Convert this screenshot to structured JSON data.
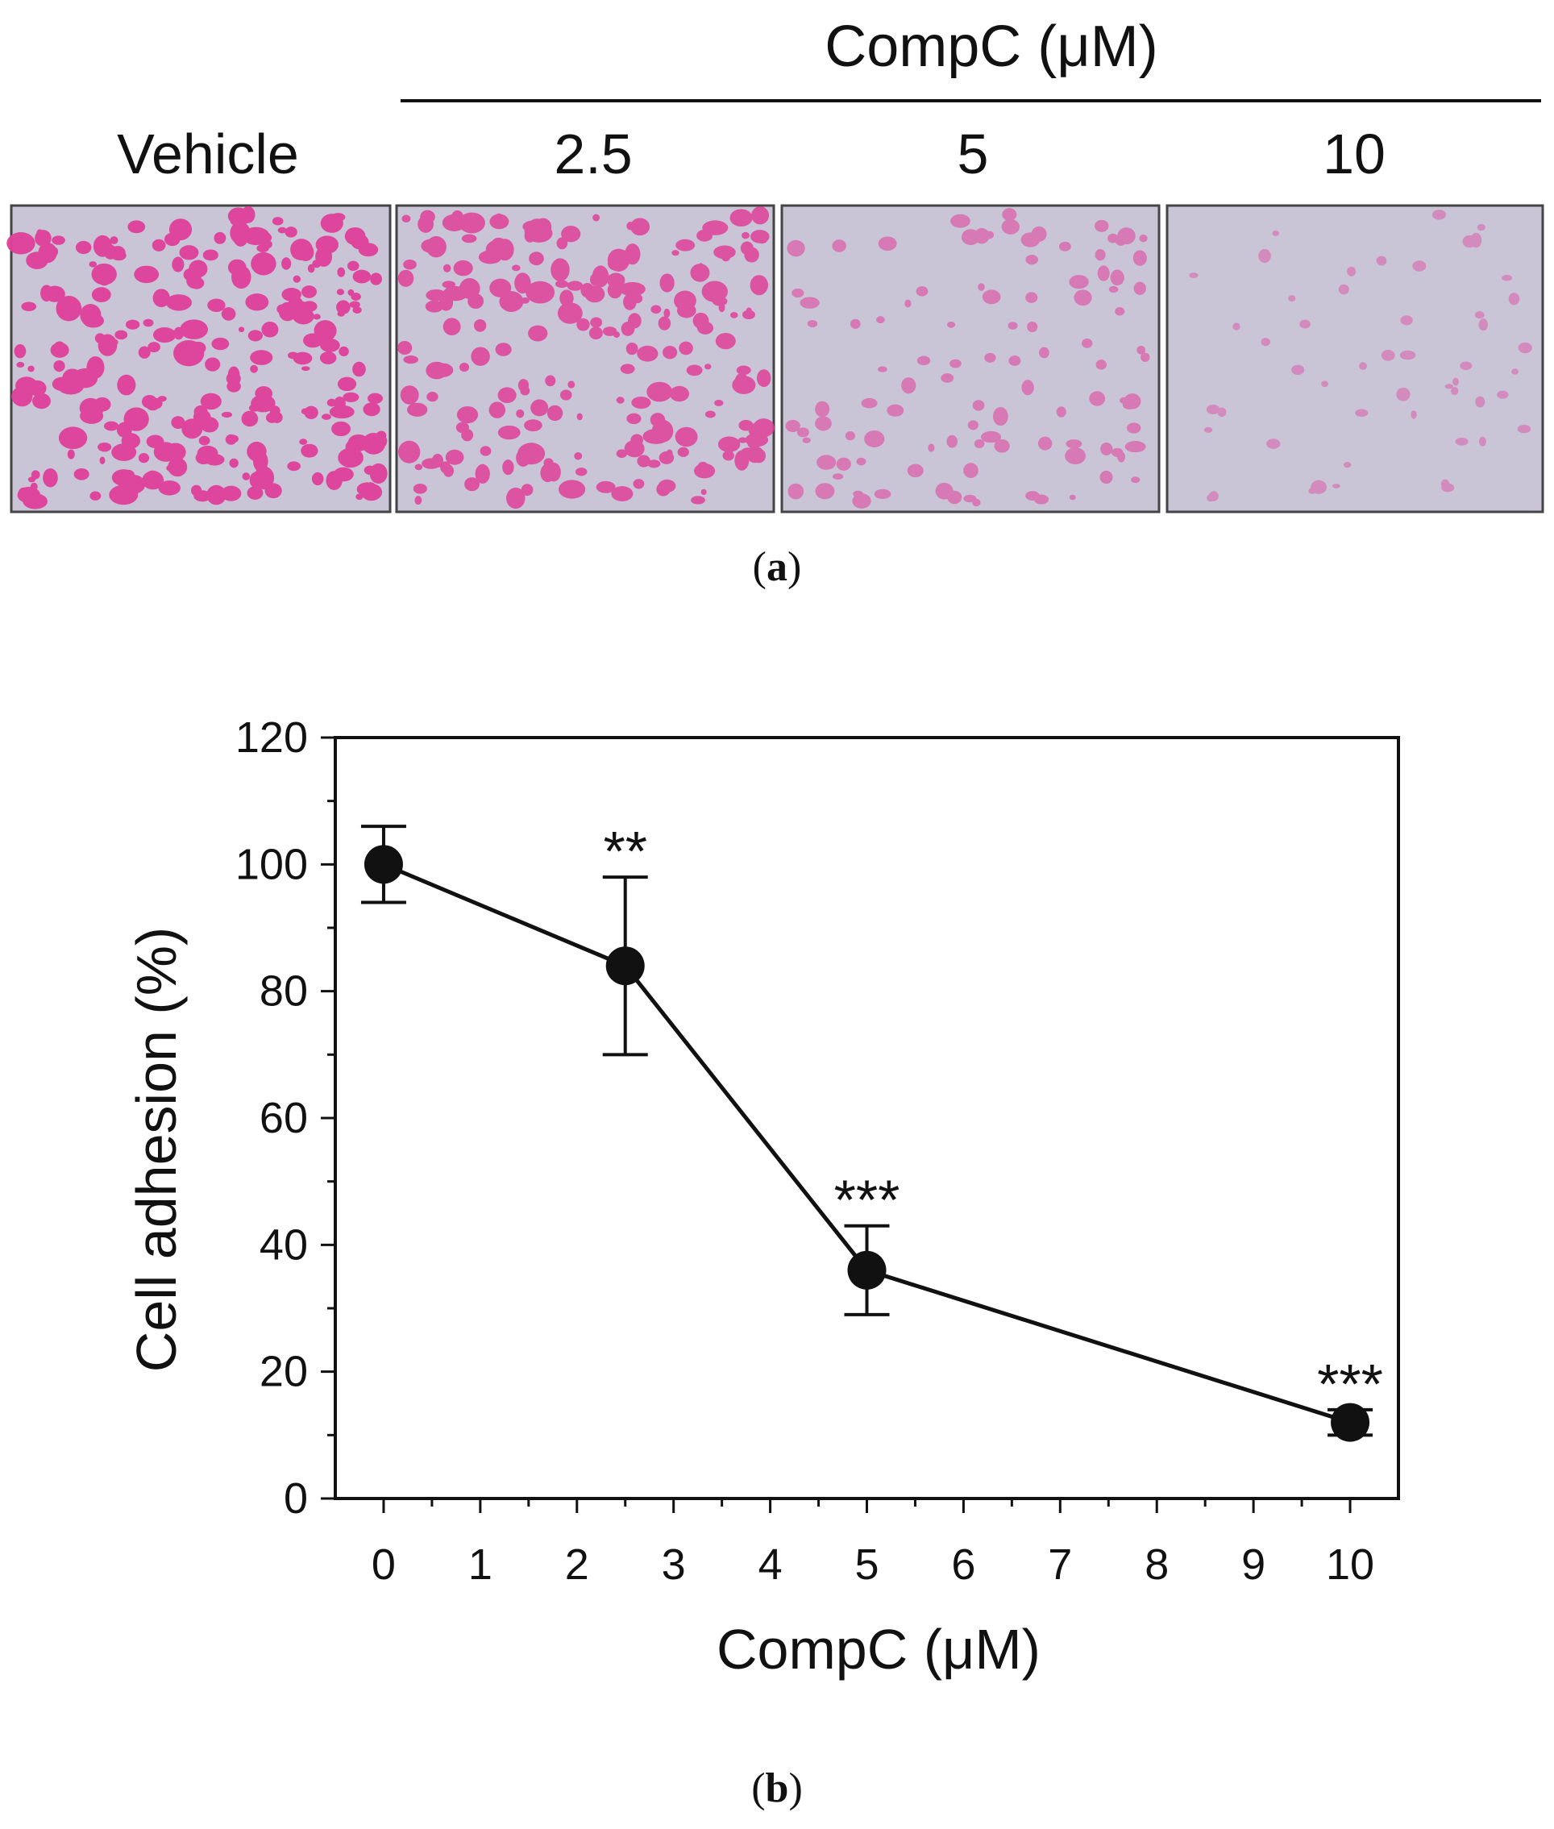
{
  "panel_a": {
    "label": "a",
    "group_label": "CompC  (μM)",
    "columns": [
      {
        "label": "Vehicle",
        "cell_density": 1.0
      },
      {
        "label": "2.5",
        "cell_density": 0.84
      },
      {
        "label": "5",
        "cell_density": 0.36
      },
      {
        "label": "10",
        "cell_density": 0.12
      }
    ],
    "colors": {
      "stain": "#e0409a",
      "background": "#c9c4d6"
    }
  },
  "panel_b": {
    "label": "b"
  },
  "chart_data": {
    "type": "line",
    "xlabel": "CompC (μM)",
    "ylabel": "Cell adhesion (%)",
    "xlim": [
      -0.5,
      10.5
    ],
    "ylim": [
      0,
      120
    ],
    "xticks": [
      0,
      1,
      2,
      3,
      4,
      5,
      6,
      7,
      8,
      9,
      10
    ],
    "yticks": [
      0,
      20,
      40,
      60,
      80,
      100,
      120
    ],
    "grid": false,
    "series": [
      {
        "x": [
          0,
          2.5,
          5,
          10
        ],
        "y": [
          100,
          84,
          36,
          12
        ],
        "error": [
          6,
          14,
          7,
          2
        ],
        "significance": [
          "",
          "**",
          "***",
          "***"
        ]
      }
    ]
  }
}
